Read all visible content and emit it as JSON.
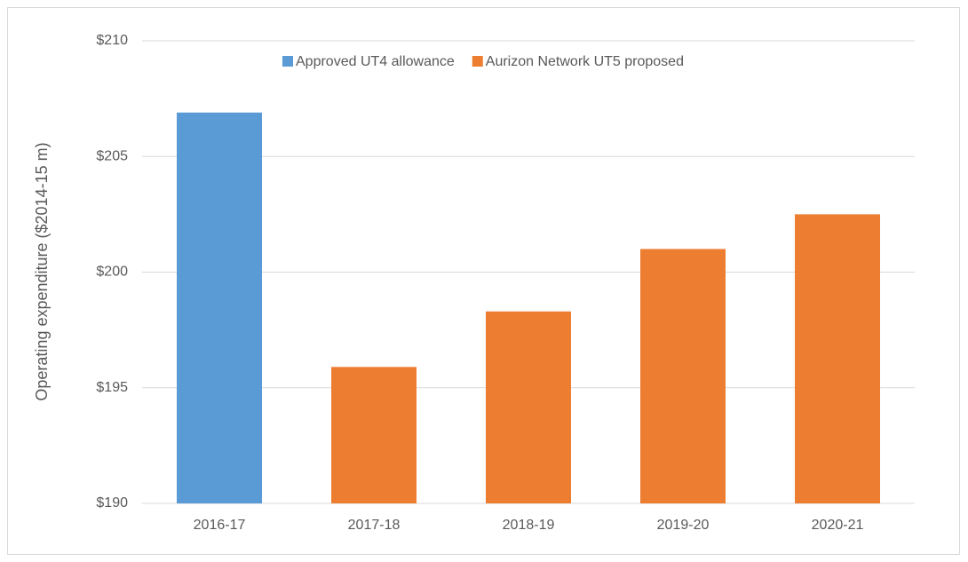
{
  "chart_data": {
    "type": "bar",
    "y_label": "Operating expenditure ($2014-15 m)",
    "categories": [
      "2016-17",
      "2017-18",
      "2018-19",
      "2019-20",
      "2020-21"
    ],
    "series": [
      {
        "name": "Approved UT4 allowance",
        "color": "#5b9bd5",
        "values": [
          206.9,
          null,
          null,
          null,
          null
        ]
      },
      {
        "name": "Aurizon Network UT5 proposed",
        "color": "#ed7d31",
        "values": [
          null,
          195.9,
          198.3,
          201.0,
          202.5
        ]
      }
    ],
    "ylim": [
      190,
      210
    ],
    "yticks": [
      {
        "value": 190,
        "label": "$190"
      },
      {
        "value": 195,
        "label": "$195"
      },
      {
        "value": 200,
        "label": "$200"
      },
      {
        "value": 205,
        "label": "$205"
      },
      {
        "value": 210,
        "label": "$210"
      }
    ],
    "grid": true,
    "legend": "top"
  }
}
